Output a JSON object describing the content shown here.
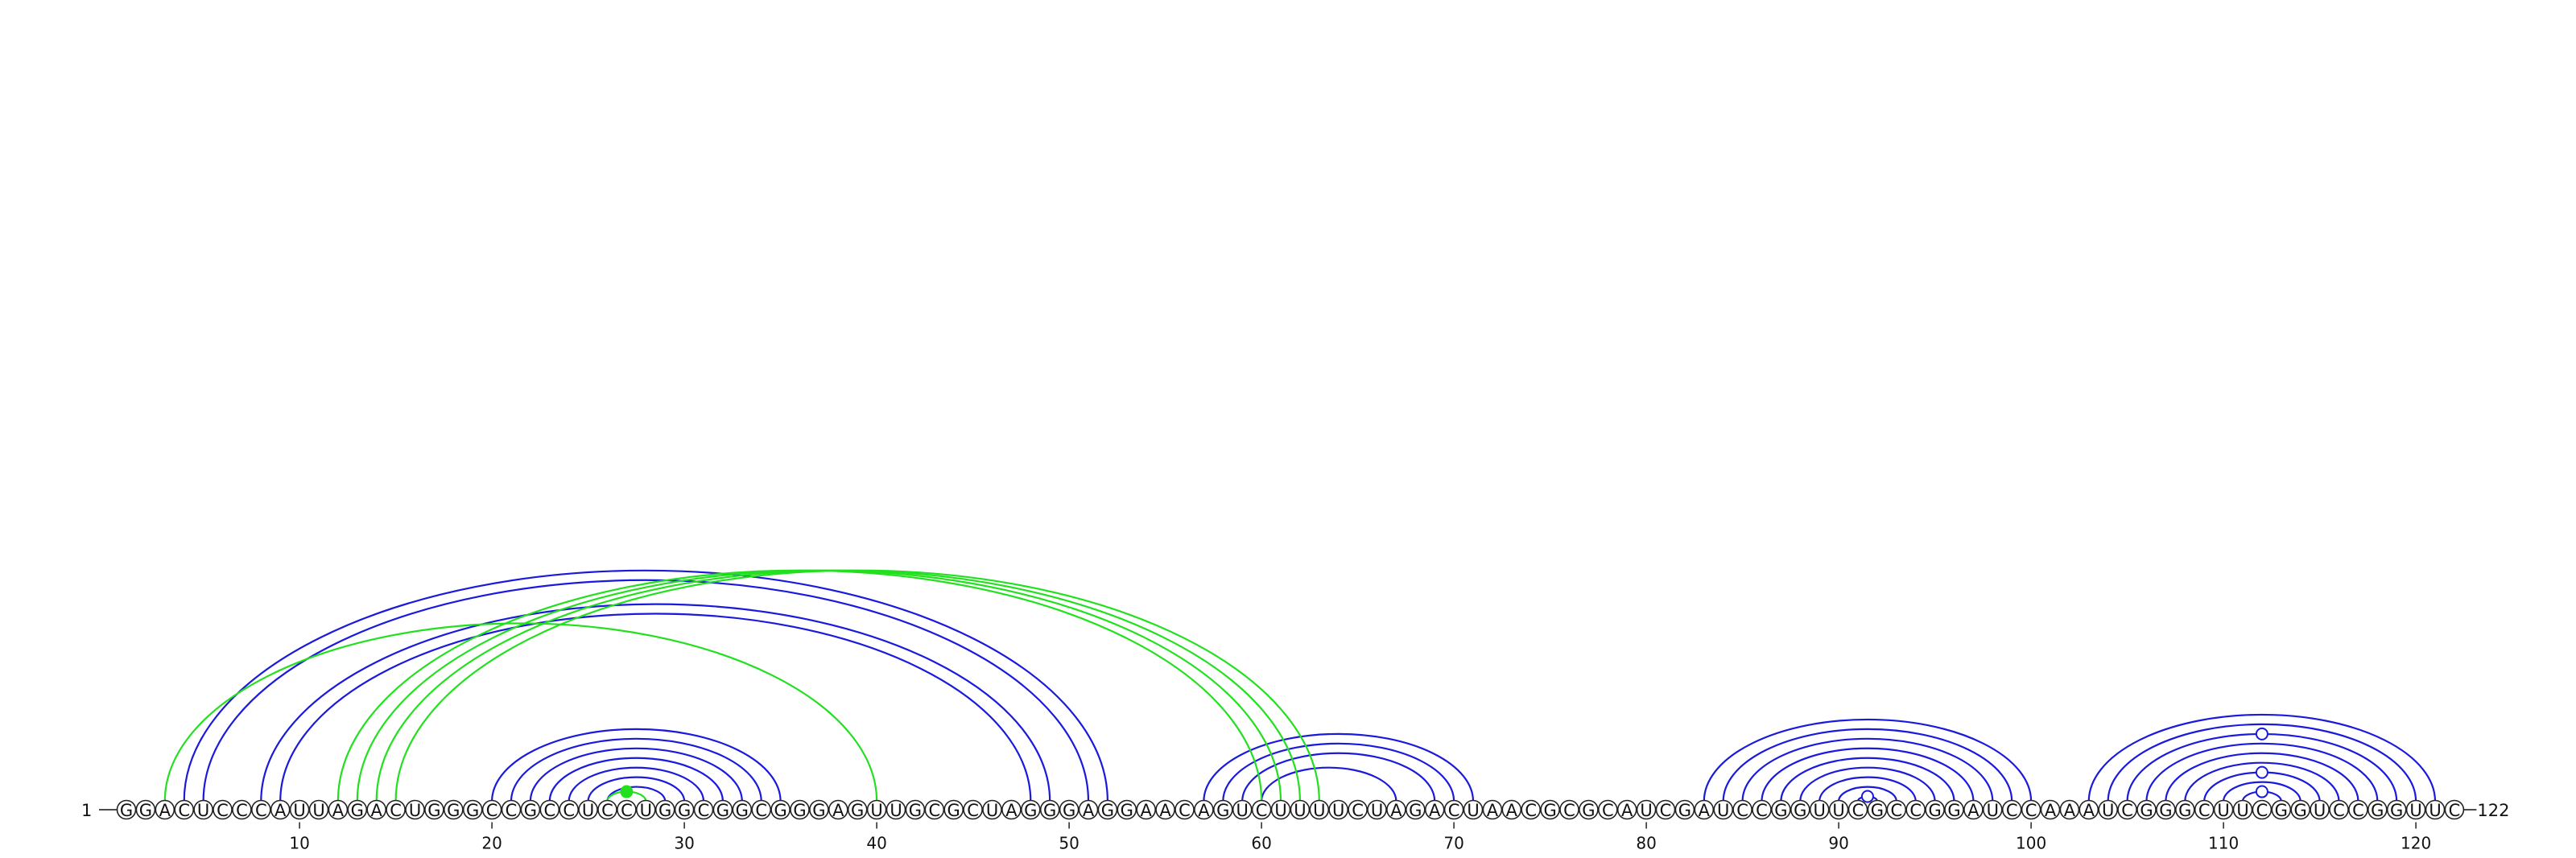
{
  "sequence": "GGACUCCCAUUAGACUGGGCCGCCUCCUGGCGGCGGGAGUUGCGCUAGGGAGGAACAGUCUUUUCUAGACUAACGCGCAUCGAUCCGGUUCGCCGGAUCCAAAUCGGGCUUCGGUCCGGUUC",
  "start_label": "1",
  "end_label": "122",
  "ticks": [
    10,
    20,
    30,
    40,
    50,
    60,
    70,
    80,
    90,
    100,
    110,
    120
  ],
  "colors": {
    "pair": "#1a1adc",
    "pseudoknot": "#22e01e"
  },
  "pairs_blue": [
    [
      4,
      52
    ],
    [
      5,
      51
    ],
    [
      8,
      49
    ],
    [
      9,
      48
    ],
    [
      20,
      35
    ],
    [
      21,
      34
    ],
    [
      22,
      33
    ],
    [
      23,
      32
    ],
    [
      24,
      31
    ],
    [
      25,
      30
    ],
    [
      26,
      29
    ],
    [
      57,
      71
    ],
    [
      58,
      70
    ],
    [
      59,
      69
    ],
    [
      60,
      67
    ],
    [
      83,
      100
    ],
    [
      84,
      99
    ],
    [
      85,
      98
    ],
    [
      86,
      97
    ],
    [
      87,
      96
    ],
    [
      88,
      95
    ],
    [
      89,
      94
    ],
    [
      90,
      93
    ],
    [
      91,
      92
    ],
    [
      103,
      121
    ],
    [
      104,
      120
    ],
    [
      105,
      119
    ],
    [
      106,
      118
    ],
    [
      107,
      117
    ],
    [
      108,
      116
    ],
    [
      109,
      115
    ],
    [
      110,
      114
    ],
    [
      111,
      113
    ]
  ],
  "pairs_green": [
    [
      3,
      40
    ],
    [
      12,
      60
    ],
    [
      13,
      61
    ],
    [
      14,
      62
    ],
    [
      15,
      63
    ],
    [
      26,
      28
    ]
  ],
  "markers": [
    {
      "pos": 27,
      "style": "filled",
      "color": "#22e01e",
      "pair": [
        26,
        28
      ]
    },
    {
      "pos": 91.5,
      "style": "open",
      "color": "#1a1adc",
      "pair": [
        91,
        92
      ]
    },
    {
      "pos": 112,
      "style": "open",
      "color": "#1a1adc",
      "pair": [
        111,
        113
      ]
    },
    {
      "pos": 112,
      "style": "open",
      "color": "#1a1adc",
      "pair": [
        109,
        115
      ]
    },
    {
      "pos": 112,
      "style": "open",
      "color": "#1a1adc",
      "pair": [
        105,
        119
      ]
    }
  ]
}
